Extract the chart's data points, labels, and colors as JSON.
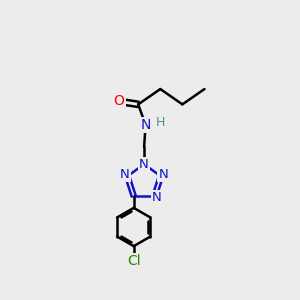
{
  "bg_color": "#ececec",
  "atom_colors": {
    "C": "#000000",
    "O": "#ff0000",
    "N": "#1111cc",
    "H": "#4a9090",
    "Cl": "#228800"
  },
  "bond_color": "#000000",
  "bond_width": 1.8,
  "fig_width": 3.0,
  "fig_height": 3.0,
  "dpi": 100,
  "xlim": [
    0,
    10
  ],
  "ylim": [
    0,
    10
  ]
}
